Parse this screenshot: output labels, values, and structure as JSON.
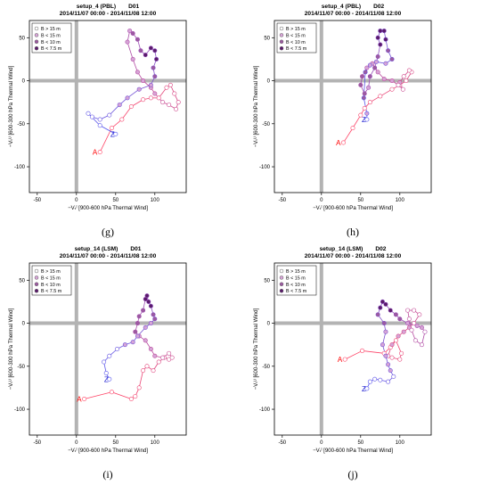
{
  "panels": [
    {
      "id": "g",
      "title": "setup_4 (PBL)",
      "domain": "D01",
      "period": "2014/11/07 00:00 - 2014/11/08 12:00",
      "caption": "(g)",
      "xlabel": "−Vₜˡ [900-600 hPa Thermal Wind]",
      "ylabel": "−Vₜᵁ [600-300 hPa Thermal Wind]",
      "legend": [
        "B > 15 m",
        "B < 15 m",
        "B < 10 m",
        "B < 7.5 m"
      ],
      "start_label": "A",
      "end_label": "Z"
    },
    {
      "id": "h",
      "title": "setup_4 (PBL)",
      "domain": "D02",
      "period": "2014/11/07 00:00 - 2014/11/08 12:00",
      "caption": "(h)",
      "xlabel": "−Vₜˡ [900-600 hPa Thermal Wind]",
      "ylabel": "−Vₜᵁ [600-300 hPa Thermal Wind]",
      "legend": [
        "B > 15 m",
        "B < 15 m",
        "B < 10 m",
        "B < 7.5 m"
      ],
      "start_label": "A",
      "end_label": "Z"
    },
    {
      "id": "i",
      "title": "setup_14 (LSM)",
      "domain": "D01",
      "period": "2014/11/07 00:00 - 2014/11/08 12:00",
      "caption": "(i)",
      "xlabel": "−Vₜˡ [900-600 hPa Thermal Wind]",
      "ylabel": "−Vₜᵁ [600-300 hPa Thermal Wind]",
      "legend": [
        "B > 15 m",
        "B < 15 m",
        "B < 10 m",
        "B < 7.5 m"
      ],
      "start_label": "A",
      "end_label": "Z"
    },
    {
      "id": "j",
      "title": "setup_14 (LSM)",
      "domain": "D02",
      "period": "2014/11/07 00:00 - 2014/11/08 12:00",
      "caption": "(j)",
      "xlabel": "−Vₜˡ [900-600 hPa Thermal Wind]",
      "ylabel": "−Vₜᵁ [600-300 hPa Thermal Wind]",
      "legend": [
        "B > 15 m",
        "B < 15 m",
        "B < 10 m",
        "B < 7.5 m"
      ],
      "start_label": "A",
      "end_label": "Z"
    }
  ],
  "chart_data": [
    {
      "panel": "g",
      "type": "scatter",
      "xlim": [
        -60,
        140
      ],
      "ylim": [
        -130,
        70
      ],
      "xticks": [
        -50,
        0,
        50,
        100
      ],
      "yticks": [
        -100,
        -50,
        0,
        50
      ],
      "start": [
        30,
        -83
      ],
      "end": [
        50,
        -62
      ],
      "points": [
        [
          30,
          -83,
          0
        ],
        [
          45,
          -55,
          0
        ],
        [
          58,
          -45,
          0
        ],
        [
          70,
          -30,
          0
        ],
        [
          85,
          -22,
          0
        ],
        [
          95,
          -20,
          0
        ],
        [
          105,
          -20,
          0
        ],
        [
          115,
          -8,
          0
        ],
        [
          120,
          -5,
          0
        ],
        [
          125,
          -15,
          0
        ],
        [
          130,
          -25,
          0
        ],
        [
          127,
          -33,
          0
        ],
        [
          118,
          -28,
          0
        ],
        [
          110,
          -25,
          0
        ],
        [
          100,
          -15,
          1
        ],
        [
          95,
          -8,
          1
        ],
        [
          85,
          0,
          1
        ],
        [
          78,
          10,
          1
        ],
        [
          72,
          25,
          1
        ],
        [
          65,
          45,
          1
        ],
        [
          68,
          58,
          1
        ],
        [
          72,
          55,
          2
        ],
        [
          78,
          48,
          2
        ],
        [
          82,
          35,
          2
        ],
        [
          88,
          30,
          3
        ],
        [
          95,
          38,
          3
        ],
        [
          100,
          35,
          3
        ],
        [
          102,
          25,
          3
        ],
        [
          98,
          15,
          2
        ],
        [
          100,
          5,
          2
        ],
        [
          95,
          -5,
          1
        ],
        [
          80,
          -10,
          1
        ],
        [
          65,
          -20,
          1
        ],
        [
          55,
          -28,
          1
        ],
        [
          42,
          -40,
          0
        ],
        [
          30,
          -45,
          0
        ],
        [
          20,
          -42,
          0
        ],
        [
          15,
          -38,
          0
        ],
        [
          30,
          -52,
          0
        ],
        [
          50,
          -62,
          0
        ]
      ]
    },
    {
      "panel": "h",
      "type": "scatter",
      "xlim": [
        -60,
        140
      ],
      "ylim": [
        -130,
        70
      ],
      "xticks": [
        -50,
        0,
        50,
        100
      ],
      "yticks": [
        -100,
        -50,
        0,
        50
      ],
      "start": [
        28,
        -72
      ],
      "end": [
        58,
        -45
      ],
      "points": [
        [
          28,
          -72,
          0
        ],
        [
          40,
          -55,
          0
        ],
        [
          50,
          -40,
          0
        ],
        [
          55,
          -32,
          0
        ],
        [
          62,
          -25,
          0
        ],
        [
          75,
          -18,
          0
        ],
        [
          90,
          -10,
          0
        ],
        [
          100,
          -5,
          0
        ],
        [
          108,
          0,
          0
        ],
        [
          115,
          10,
          0
        ],
        [
          112,
          12,
          0
        ],
        [
          105,
          5,
          0
        ],
        [
          100,
          -2,
          1
        ],
        [
          104,
          -10,
          0
        ],
        [
          98,
          -5,
          0
        ],
        [
          90,
          0,
          1
        ],
        [
          80,
          2,
          1
        ],
        [
          72,
          10,
          1
        ],
        [
          65,
          20,
          1
        ],
        [
          58,
          15,
          1
        ],
        [
          52,
          5,
          2
        ],
        [
          50,
          -5,
          2
        ],
        [
          55,
          -15,
          2
        ],
        [
          60,
          -8,
          1
        ],
        [
          62,
          5,
          2
        ],
        [
          68,
          15,
          2
        ],
        [
          72,
          28,
          2
        ],
        [
          75,
          42,
          3
        ],
        [
          72,
          50,
          3
        ],
        [
          75,
          58,
          3
        ],
        [
          80,
          58,
          3
        ],
        [
          82,
          48,
          3
        ],
        [
          85,
          35,
          2
        ],
        [
          90,
          25,
          2
        ],
        [
          82,
          20,
          1
        ],
        [
          70,
          22,
          1
        ],
        [
          62,
          18,
          1
        ],
        [
          56,
          10,
          2
        ],
        [
          54,
          -20,
          2
        ],
        [
          58,
          -38,
          1
        ],
        [
          58,
          -45,
          0
        ]
      ]
    },
    {
      "panel": "i",
      "type": "scatter",
      "xlim": [
        -60,
        140
      ],
      "ylim": [
        -130,
        70
      ],
      "xticks": [
        -50,
        0,
        50,
        100
      ],
      "yticks": [
        -100,
        -50,
        0,
        50
      ],
      "start": [
        10,
        -88
      ],
      "end": [
        42,
        -65
      ],
      "points": [
        [
          10,
          -88,
          0
        ],
        [
          45,
          -80,
          0
        ],
        [
          70,
          -88,
          0
        ],
        [
          75,
          -85,
          0
        ],
        [
          80,
          -75,
          0
        ],
        [
          85,
          -55,
          0
        ],
        [
          90,
          -50,
          0
        ],
        [
          98,
          -55,
          0
        ],
        [
          105,
          -45,
          0
        ],
        [
          112,
          -40,
          0
        ],
        [
          118,
          -42,
          0
        ],
        [
          122,
          -40,
          0
        ],
        [
          118,
          -35,
          0
        ],
        [
          110,
          -40,
          0
        ],
        [
          100,
          -38,
          1
        ],
        [
          95,
          -30,
          1
        ],
        [
          88,
          -20,
          1
        ],
        [
          80,
          -15,
          1
        ],
        [
          75,
          -10,
          2
        ],
        [
          78,
          0,
          2
        ],
        [
          80,
          8,
          2
        ],
        [
          85,
          15,
          2
        ],
        [
          88,
          28,
          3
        ],
        [
          90,
          32,
          3
        ],
        [
          92,
          25,
          3
        ],
        [
          95,
          20,
          3
        ],
        [
          98,
          10,
          2
        ],
        [
          100,
          5,
          2
        ],
        [
          95,
          0,
          1
        ],
        [
          88,
          -5,
          1
        ],
        [
          78,
          -15,
          1
        ],
        [
          72,
          -22,
          1
        ],
        [
          62,
          -25,
          1
        ],
        [
          52,
          -30,
          0
        ],
        [
          42,
          -38,
          0
        ],
        [
          35,
          -45,
          0
        ],
        [
          38,
          -58,
          0
        ],
        [
          42,
          -65,
          0
        ]
      ]
    },
    {
      "panel": "j",
      "type": "scatter",
      "xlim": [
        -60,
        140
      ],
      "ylim": [
        -130,
        70
      ],
      "xticks": [
        -50,
        0,
        50,
        100
      ],
      "yticks": [
        -100,
        -50,
        0,
        50
      ],
      "start": [
        30,
        -42
      ],
      "end": [
        58,
        -76
      ],
      "points": [
        [
          30,
          -42,
          0
        ],
        [
          52,
          -32,
          0
        ],
        [
          80,
          -35,
          0
        ],
        [
          88,
          -28,
          0
        ],
        [
          95,
          -20,
          0
        ],
        [
          102,
          -35,
          0
        ],
        [
          100,
          -42,
          0
        ],
        [
          90,
          -40,
          0
        ],
        [
          85,
          -38,
          0
        ],
        [
          90,
          -25,
          1
        ],
        [
          98,
          -15,
          1
        ],
        [
          105,
          -10,
          1
        ],
        [
          112,
          -5,
          1
        ],
        [
          118,
          0,
          0
        ],
        [
          125,
          10,
          0
        ],
        [
          118,
          15,
          0
        ],
        [
          110,
          15,
          0
        ],
        [
          112,
          5,
          0
        ],
        [
          115,
          -8,
          0
        ],
        [
          120,
          -20,
          0
        ],
        [
          128,
          -25,
          0
        ],
        [
          132,
          -10,
          0
        ],
        [
          128,
          -5,
          1
        ],
        [
          122,
          -3,
          1
        ],
        [
          110,
          0,
          1
        ],
        [
          100,
          5,
          2
        ],
        [
          95,
          10,
          2
        ],
        [
          88,
          15,
          3
        ],
        [
          82,
          22,
          3
        ],
        [
          78,
          25,
          3
        ],
        [
          75,
          18,
          3
        ],
        [
          72,
          10,
          2
        ],
        [
          80,
          0,
          2
        ],
        [
          82,
          -10,
          1
        ],
        [
          78,
          -25,
          1
        ],
        [
          82,
          -38,
          1
        ],
        [
          85,
          -48,
          1
        ],
        [
          88,
          -55,
          1
        ],
        [
          92,
          -62,
          0
        ],
        [
          85,
          -68,
          0
        ],
        [
          75,
          -66,
          0
        ],
        [
          68,
          -65,
          0
        ],
        [
          62,
          -68,
          0
        ],
        [
          58,
          -76,
          0
        ]
      ]
    }
  ],
  "colors": {
    "grid_cross": "#b3b3b3",
    "start_label": "#ff0000",
    "end_label": "#2020d0",
    "track_start": "#ff4466",
    "track_end": "#5555ee",
    "fill_levels": [
      "#ffffff",
      "#d6a4d6",
      "#9b5aa0",
      "#5a1a6a"
    ]
  }
}
